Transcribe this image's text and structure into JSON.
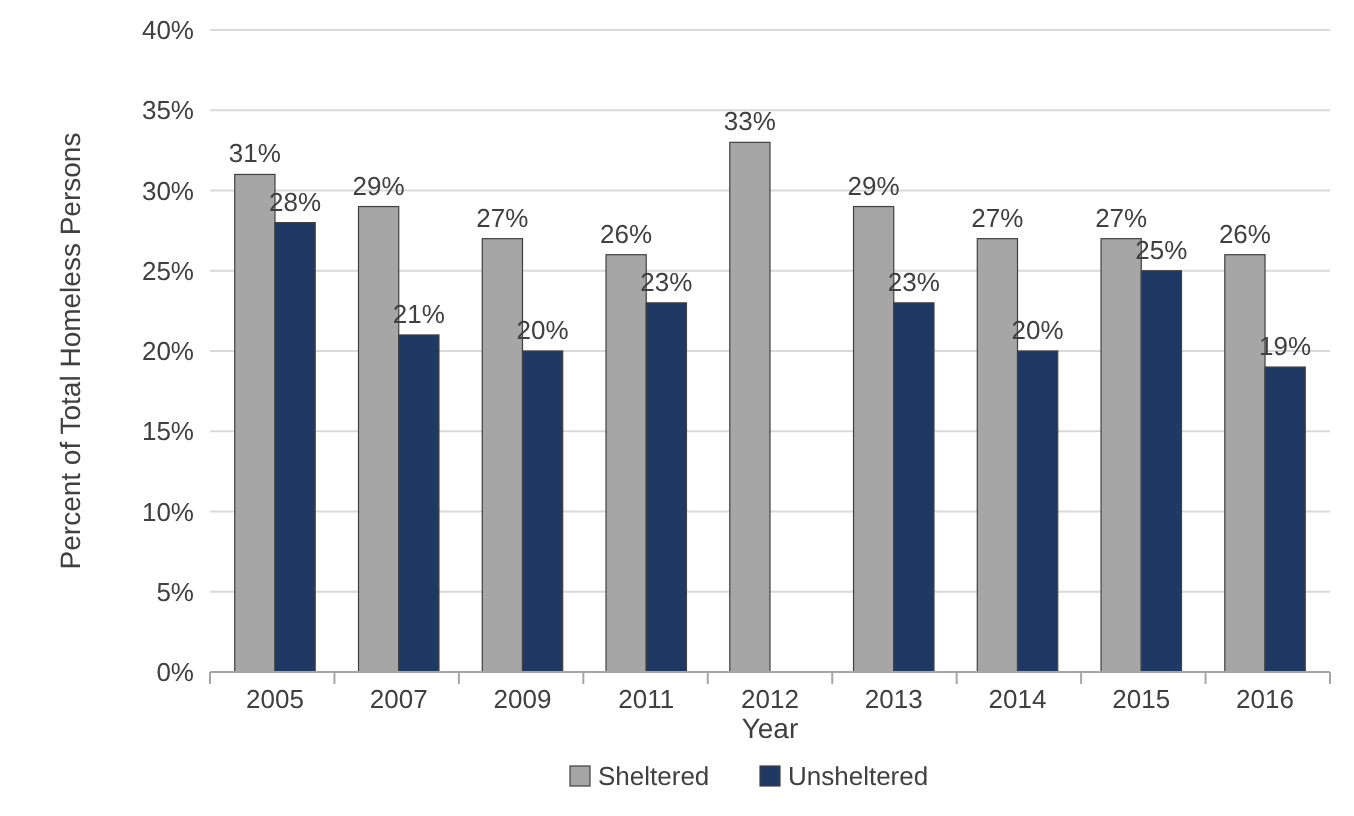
{
  "chart_data": {
    "type": "bar",
    "xlabel": "Year",
    "ylabel": "Percent of Total Homeless Persons",
    "categories": [
      "2005",
      "2007",
      "2009",
      "2011",
      "2012",
      "2013",
      "2014",
      "2015",
      "2016"
    ],
    "series": [
      {
        "name": "Sheltered",
        "color": "#a6a6a6",
        "values": [
          31,
          29,
          27,
          26,
          33,
          29,
          27,
          27,
          26
        ],
        "value_labels": [
          "31%",
          "29%",
          "27%",
          "26%",
          "33%",
          "29%",
          "27%",
          "27%",
          "26%"
        ]
      },
      {
        "name": "Unsheltered",
        "color": "#1f3864",
        "values": [
          28,
          21,
          20,
          23,
          null,
          23,
          20,
          25,
          19
        ],
        "value_labels": [
          "28%",
          "21%",
          "20%",
          "23%",
          null,
          "23%",
          "20%",
          "25%",
          "19%"
        ]
      }
    ],
    "ylim": [
      0,
      40
    ],
    "yticks": [
      {
        "value": 0,
        "label": "0%"
      },
      {
        "value": 5,
        "label": "5%"
      },
      {
        "value": 10,
        "label": "10%"
      },
      {
        "value": 15,
        "label": "15%"
      },
      {
        "value": 20,
        "label": "20%"
      },
      {
        "value": 25,
        "label": "25%"
      },
      {
        "value": 30,
        "label": "30%"
      },
      {
        "value": 35,
        "label": "35%"
      },
      {
        "value": 40,
        "label": "40%"
      }
    ],
    "grid": "y",
    "legend": "bottom"
  }
}
